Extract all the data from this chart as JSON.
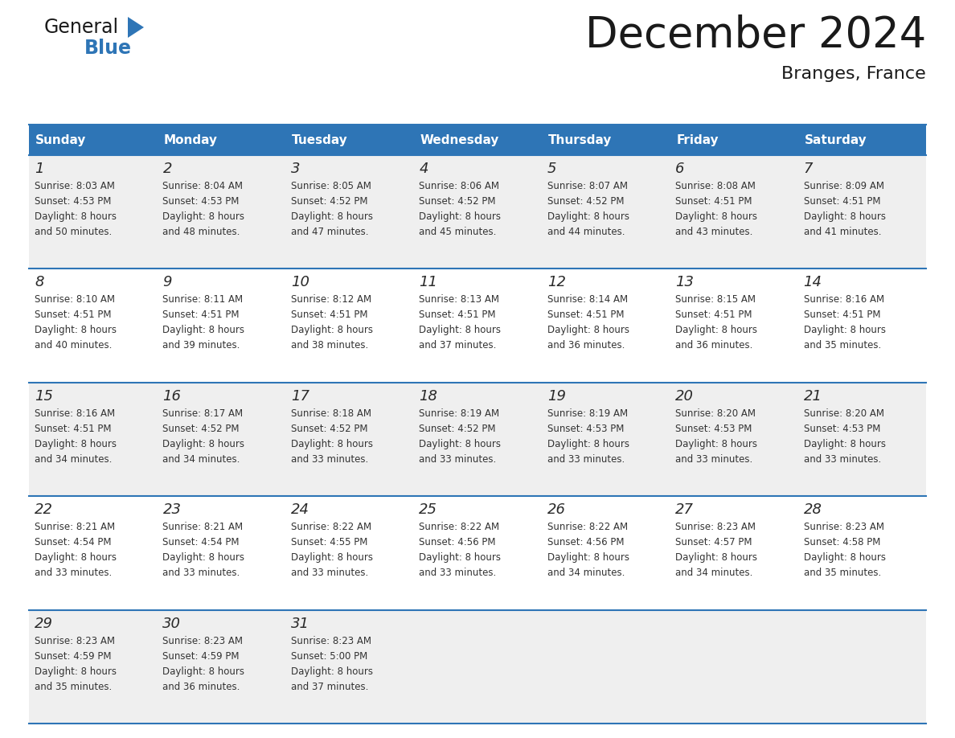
{
  "title": "December 2024",
  "subtitle": "Branges, France",
  "header_bg_color": "#2E75B6",
  "header_text_color": "#FFFFFF",
  "day_names": [
    "Sunday",
    "Monday",
    "Tuesday",
    "Wednesday",
    "Thursday",
    "Friday",
    "Saturday"
  ],
  "grid_line_color": "#2E75B6",
  "cell_bg_even": "#EFEFEF",
  "cell_bg_odd": "#FFFFFF",
  "day_number_color": "#333333",
  "cell_text_color": "#333333",
  "weeks": [
    {
      "days": [
        {
          "date": 1,
          "sunrise": "8:03 AM",
          "sunset": "4:53 PM",
          "daylight": "8 hours and 50 minutes."
        },
        {
          "date": 2,
          "sunrise": "8:04 AM",
          "sunset": "4:53 PM",
          "daylight": "8 hours and 48 minutes."
        },
        {
          "date": 3,
          "sunrise": "8:05 AM",
          "sunset": "4:52 PM",
          "daylight": "8 hours and 47 minutes."
        },
        {
          "date": 4,
          "sunrise": "8:06 AM",
          "sunset": "4:52 PM",
          "daylight": "8 hours and 45 minutes."
        },
        {
          "date": 5,
          "sunrise": "8:07 AM",
          "sunset": "4:52 PM",
          "daylight": "8 hours and 44 minutes."
        },
        {
          "date": 6,
          "sunrise": "8:08 AM",
          "sunset": "4:51 PM",
          "daylight": "8 hours and 43 minutes."
        },
        {
          "date": 7,
          "sunrise": "8:09 AM",
          "sunset": "4:51 PM",
          "daylight": "8 hours and 41 minutes."
        }
      ]
    },
    {
      "days": [
        {
          "date": 8,
          "sunrise": "8:10 AM",
          "sunset": "4:51 PM",
          "daylight": "8 hours and 40 minutes."
        },
        {
          "date": 9,
          "sunrise": "8:11 AM",
          "sunset": "4:51 PM",
          "daylight": "8 hours and 39 minutes."
        },
        {
          "date": 10,
          "sunrise": "8:12 AM",
          "sunset": "4:51 PM",
          "daylight": "8 hours and 38 minutes."
        },
        {
          "date": 11,
          "sunrise": "8:13 AM",
          "sunset": "4:51 PM",
          "daylight": "8 hours and 37 minutes."
        },
        {
          "date": 12,
          "sunrise": "8:14 AM",
          "sunset": "4:51 PM",
          "daylight": "8 hours and 36 minutes."
        },
        {
          "date": 13,
          "sunrise": "8:15 AM",
          "sunset": "4:51 PM",
          "daylight": "8 hours and 36 minutes."
        },
        {
          "date": 14,
          "sunrise": "8:16 AM",
          "sunset": "4:51 PM",
          "daylight": "8 hours and 35 minutes."
        }
      ]
    },
    {
      "days": [
        {
          "date": 15,
          "sunrise": "8:16 AM",
          "sunset": "4:51 PM",
          "daylight": "8 hours and 34 minutes."
        },
        {
          "date": 16,
          "sunrise": "8:17 AM",
          "sunset": "4:52 PM",
          "daylight": "8 hours and 34 minutes."
        },
        {
          "date": 17,
          "sunrise": "8:18 AM",
          "sunset": "4:52 PM",
          "daylight": "8 hours and 33 minutes."
        },
        {
          "date": 18,
          "sunrise": "8:19 AM",
          "sunset": "4:52 PM",
          "daylight": "8 hours and 33 minutes."
        },
        {
          "date": 19,
          "sunrise": "8:19 AM",
          "sunset": "4:53 PM",
          "daylight": "8 hours and 33 minutes."
        },
        {
          "date": 20,
          "sunrise": "8:20 AM",
          "sunset": "4:53 PM",
          "daylight": "8 hours and 33 minutes."
        },
        {
          "date": 21,
          "sunrise": "8:20 AM",
          "sunset": "4:53 PM",
          "daylight": "8 hours and 33 minutes."
        }
      ]
    },
    {
      "days": [
        {
          "date": 22,
          "sunrise": "8:21 AM",
          "sunset": "4:54 PM",
          "daylight": "8 hours and 33 minutes."
        },
        {
          "date": 23,
          "sunrise": "8:21 AM",
          "sunset": "4:54 PM",
          "daylight": "8 hours and 33 minutes."
        },
        {
          "date": 24,
          "sunrise": "8:22 AM",
          "sunset": "4:55 PM",
          "daylight": "8 hours and 33 minutes."
        },
        {
          "date": 25,
          "sunrise": "8:22 AM",
          "sunset": "4:56 PM",
          "daylight": "8 hours and 33 minutes."
        },
        {
          "date": 26,
          "sunrise": "8:22 AM",
          "sunset": "4:56 PM",
          "daylight": "8 hours and 34 minutes."
        },
        {
          "date": 27,
          "sunrise": "8:23 AM",
          "sunset": "4:57 PM",
          "daylight": "8 hours and 34 minutes."
        },
        {
          "date": 28,
          "sunrise": "8:23 AM",
          "sunset": "4:58 PM",
          "daylight": "8 hours and 35 minutes."
        }
      ]
    },
    {
      "days": [
        {
          "date": 29,
          "sunrise": "8:23 AM",
          "sunset": "4:59 PM",
          "daylight": "8 hours and 35 minutes."
        },
        {
          "date": 30,
          "sunrise": "8:23 AM",
          "sunset": "4:59 PM",
          "daylight": "8 hours and 36 minutes."
        },
        {
          "date": 31,
          "sunrise": "8:23 AM",
          "sunset": "5:00 PM",
          "daylight": "8 hours and 37 minutes."
        },
        null,
        null,
        null,
        null
      ]
    }
  ]
}
